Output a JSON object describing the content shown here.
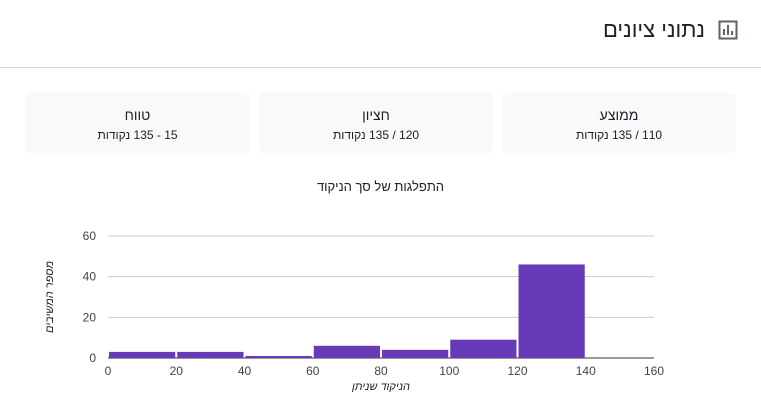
{
  "header": {
    "title": "נתוני ציונים",
    "icon": "bar-chart-icon"
  },
  "stats": [
    {
      "label": "ממוצע",
      "value": "110 / 135 נקודות"
    },
    {
      "label": "חציון",
      "value": "120 / 135 נקודות"
    },
    {
      "label": "טווח",
      "value": "15 - 135 נקודות"
    }
  ],
  "chart_data": {
    "type": "bar",
    "title": "התפלגות של סך הניקוד",
    "xlabel": "הניקוד שניתן",
    "ylabel": "מספר המשיבים",
    "bins": [
      {
        "x0": 0,
        "x1": 20,
        "count": 3
      },
      {
        "x0": 20,
        "x1": 40,
        "count": 3
      },
      {
        "x0": 40,
        "x1": 60,
        "count": 1
      },
      {
        "x0": 60,
        "x1": 80,
        "count": 6
      },
      {
        "x0": 80,
        "x1": 100,
        "count": 4
      },
      {
        "x0": 100,
        "x1": 120,
        "count": 9
      },
      {
        "x0": 120,
        "x1": 140,
        "count": 46
      }
    ],
    "xticks": [
      0,
      20,
      40,
      60,
      80,
      100,
      120,
      140,
      160
    ],
    "yticks": [
      0,
      20,
      40,
      60
    ],
    "xlim": [
      0,
      160
    ],
    "ylim": [
      0,
      60
    ],
    "bar_color": "#673ab7",
    "grid": true
  }
}
